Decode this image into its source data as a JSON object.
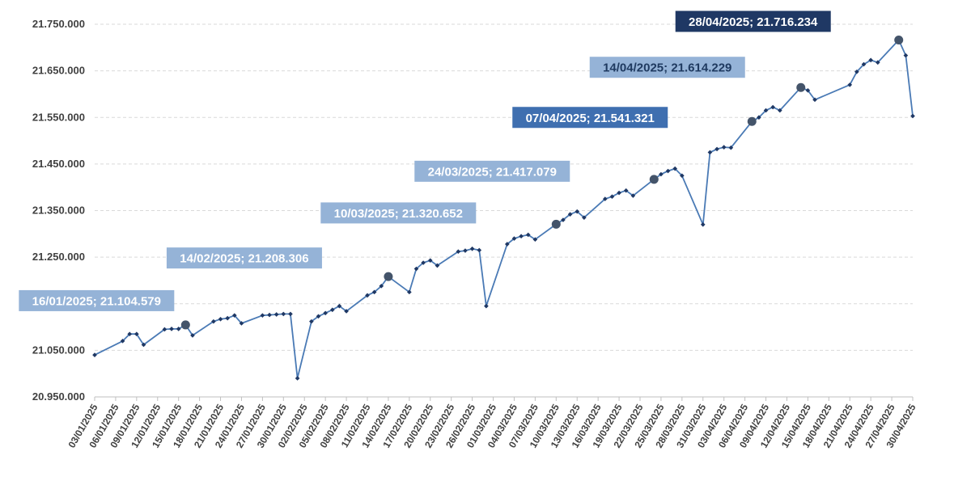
{
  "chart_data": {
    "type": "line",
    "title": "",
    "xlabel": "",
    "ylabel": "",
    "ylim": [
      20950000,
      21750000
    ],
    "grid": true,
    "legend": "none",
    "y_ticks": [
      "20.950.000",
      "21.050.000",
      "21.150.000",
      "21.250.000",
      "21.350.000",
      "21.450.000",
      "21.550.000",
      "21.650.000",
      "21.750.000"
    ],
    "x_ticks": [
      "03/01/2025",
      "06/01/2025",
      "09/01/2025",
      "12/01/2025",
      "15/01/2025",
      "18/01/2025",
      "21/01/2025",
      "24/01/2025",
      "27/01/2025",
      "30/01/2025",
      "02/02/2025",
      "05/02/2025",
      "08/02/2025",
      "11/02/2025",
      "14/02/2025",
      "17/02/2025",
      "20/02/2025",
      "23/02/2025",
      "26/02/2025",
      "01/03/2025",
      "04/03/2025",
      "07/03/2025",
      "10/03/2025",
      "13/03/2025",
      "16/03/2025",
      "19/03/2025",
      "22/03/2025",
      "25/03/2025",
      "28/03/2025",
      "31/03/2025",
      "03/04/2025",
      "06/04/2025",
      "09/04/2025",
      "12/04/2025",
      "15/04/2025",
      "18/04/2025",
      "21/04/2025",
      "24/04/2025",
      "27/04/2025",
      "30/04/2025"
    ],
    "series": [
      {
        "color": "#4a7ab5",
        "points": [
          [
            "2025-01-03",
            21040000
          ],
          [
            "2025-01-07",
            21070000
          ],
          [
            "2025-01-08",
            21085000
          ],
          [
            "2025-01-09",
            21085000
          ],
          [
            "2025-01-10",
            21062000
          ],
          [
            "2025-01-13",
            21095000
          ],
          [
            "2025-01-14",
            21096000
          ],
          [
            "2025-01-15",
            21096000
          ],
          [
            "2025-01-16",
            21104579
          ],
          [
            "2025-01-17",
            21082000
          ],
          [
            "2025-01-20",
            21112000
          ],
          [
            "2025-01-21",
            21117000
          ],
          [
            "2025-01-22",
            21119000
          ],
          [
            "2025-01-23",
            21125000
          ],
          [
            "2025-01-24",
            21108000
          ],
          [
            "2025-01-27",
            21125000
          ],
          [
            "2025-01-28",
            21126000
          ],
          [
            "2025-01-29",
            21127000
          ],
          [
            "2025-01-30",
            21128000
          ],
          [
            "2025-01-31",
            21128000
          ],
          [
            "2025-02-01",
            20990000
          ],
          [
            "2025-02-03",
            21112000
          ],
          [
            "2025-02-04",
            21123000
          ],
          [
            "2025-02-05",
            21130000
          ],
          [
            "2025-02-06",
            21137000
          ],
          [
            "2025-02-07",
            21145000
          ],
          [
            "2025-02-08",
            21134000
          ],
          [
            "2025-02-11",
            21168000
          ],
          [
            "2025-02-12",
            21175000
          ],
          [
            "2025-02-13",
            21188000
          ],
          [
            "2025-02-14",
            21208306
          ],
          [
            "2025-02-17",
            21175000
          ],
          [
            "2025-02-18",
            21225000
          ],
          [
            "2025-02-19",
            21238000
          ],
          [
            "2025-02-20",
            21243000
          ],
          [
            "2025-02-21",
            21232000
          ],
          [
            "2025-02-24",
            21262000
          ],
          [
            "2025-02-25",
            21264000
          ],
          [
            "2025-02-26",
            21268000
          ],
          [
            "2025-02-27",
            21265000
          ],
          [
            "2025-02-28",
            21145000
          ],
          [
            "2025-03-03",
            21278000
          ],
          [
            "2025-03-04",
            21290000
          ],
          [
            "2025-03-05",
            21295000
          ],
          [
            "2025-03-06",
            21298000
          ],
          [
            "2025-03-07",
            21288000
          ],
          [
            "2025-03-10",
            21320652
          ],
          [
            "2025-03-11",
            21330000
          ],
          [
            "2025-03-12",
            21342000
          ],
          [
            "2025-03-13",
            21348000
          ],
          [
            "2025-03-14",
            21335000
          ],
          [
            "2025-03-17",
            21375000
          ],
          [
            "2025-03-18",
            21380000
          ],
          [
            "2025-03-19",
            21388000
          ],
          [
            "2025-03-20",
            21393000
          ],
          [
            "2025-03-21",
            21382000
          ],
          [
            "2025-03-24",
            21417079
          ],
          [
            "2025-03-25",
            21428000
          ],
          [
            "2025-03-26",
            21435000
          ],
          [
            "2025-03-27",
            21440000
          ],
          [
            "2025-03-28",
            21425000
          ],
          [
            "2025-03-31",
            21320000
          ],
          [
            "2025-04-01",
            21475000
          ],
          [
            "2025-04-02",
            21482000
          ],
          [
            "2025-04-03",
            21486000
          ],
          [
            "2025-04-04",
            21485000
          ],
          [
            "2025-04-07",
            21541321
          ],
          [
            "2025-04-08",
            21550000
          ],
          [
            "2025-04-09",
            21565000
          ],
          [
            "2025-04-10",
            21572000
          ],
          [
            "2025-04-11",
            21565000
          ],
          [
            "2025-04-14",
            21614229
          ],
          [
            "2025-04-15",
            21608000
          ],
          [
            "2025-04-16",
            21588000
          ],
          [
            "2025-04-21",
            21620000
          ],
          [
            "2025-04-22",
            21648000
          ],
          [
            "2025-04-23",
            21664000
          ],
          [
            "2025-04-24",
            21673000
          ],
          [
            "2025-04-25",
            21668000
          ],
          [
            "2025-04-28",
            21716234
          ],
          [
            "2025-04-29",
            21683000
          ],
          [
            "2025-04-30",
            21553000
          ]
        ]
      }
    ],
    "annotations": [
      {
        "date": "2025-01-16",
        "value": 21104579,
        "label": "16/01/2025; 21.104.579",
        "bg": "#95b3d7",
        "fg": "#ffffff"
      },
      {
        "date": "2025-02-14",
        "value": 21208306,
        "label": "14/02/2025; 21.208.306",
        "bg": "#95b3d7",
        "fg": "#ffffff"
      },
      {
        "date": "2025-03-10",
        "value": 21320652,
        "label": "10/03/2025; 21.320.652",
        "bg": "#95b3d7",
        "fg": "#ffffff"
      },
      {
        "date": "2025-03-24",
        "value": 21417079,
        "label": "24/03/2025; 21.417.079",
        "bg": "#95b3d7",
        "fg": "#ffffff"
      },
      {
        "date": "2025-04-07",
        "value": 21541321,
        "label": "07/04/2025; 21.541.321",
        "bg": "#3f6fb0",
        "fg": "#ffffff"
      },
      {
        "date": "2025-04-14",
        "value": 21614229,
        "label": "14/04/2025; 21.614.229",
        "bg": "#95b3d7",
        "fg": "#1f3a60"
      },
      {
        "date": "2025-04-28",
        "value": 21716234,
        "label": "28/04/2025; 21.716.234",
        "bg": "#1f3864",
        "fg": "#ffffff"
      }
    ],
    "colors": {
      "line": "#4a7ab5",
      "marker": "#1f3864",
      "highlight_marker": "#44546a",
      "grid": "#d9d9d9",
      "axis": "#bfbfbf"
    }
  }
}
